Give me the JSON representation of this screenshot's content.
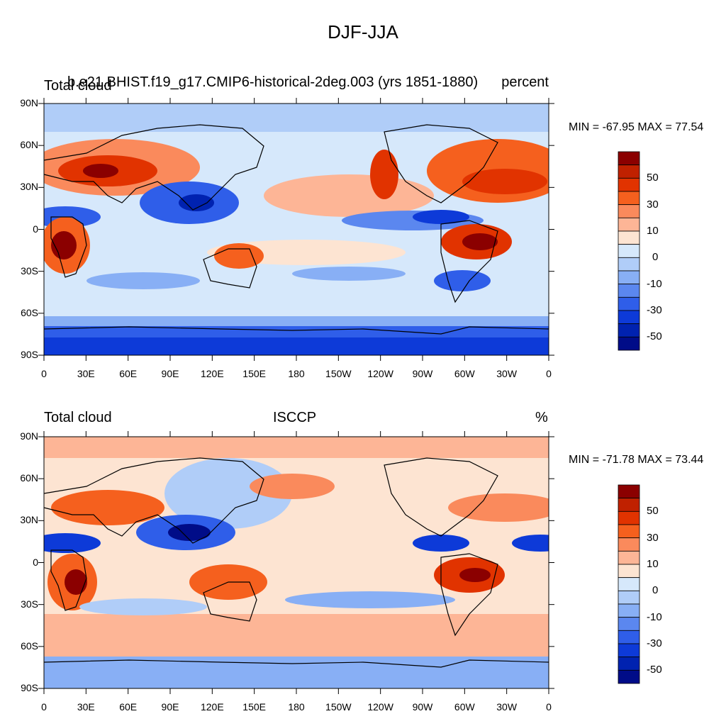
{
  "title": "DJF-JJA",
  "panels": [
    {
      "left_label": "Total cloud",
      "center_label": "b.e21.BHIST.f19_g17.CMIP6-historical-2deg.003 (yrs 1851-1880)",
      "right_label": "percent",
      "min_max": "MIN = -67.95 MAX =  77.54"
    },
    {
      "left_label": "Total cloud",
      "center_label": "ISCCP",
      "right_label": "%",
      "min_max": "MIN = -71.78 MAX =  73.44"
    }
  ],
  "lat_ticks": [
    "90N",
    "60N",
    "30N",
    "0",
    "30S",
    "60S",
    "90S"
  ],
  "lon_ticks": [
    "0",
    "30E",
    "60E",
    "90E",
    "120E",
    "150E",
    "180",
    "150W",
    "120W",
    "90W",
    "60W",
    "30W",
    "0"
  ],
  "colorbar": {
    "labels": [
      "50",
      "30",
      "10",
      "0",
      "-10",
      "-30",
      "-50"
    ],
    "colors": [
      "#8b0000",
      "#c02100",
      "#e13300",
      "#f5601e",
      "#fa8a5c",
      "#fdb596",
      "#fde4d2",
      "#d6e8fb",
      "#b0cdf8",
      "#88aff5",
      "#5b87ef",
      "#2f5ee9",
      "#0d3ad8",
      "#0022b0",
      "#000c88"
    ]
  },
  "colors": {
    "land_outline": "#000000",
    "frame": "#000000"
  }
}
